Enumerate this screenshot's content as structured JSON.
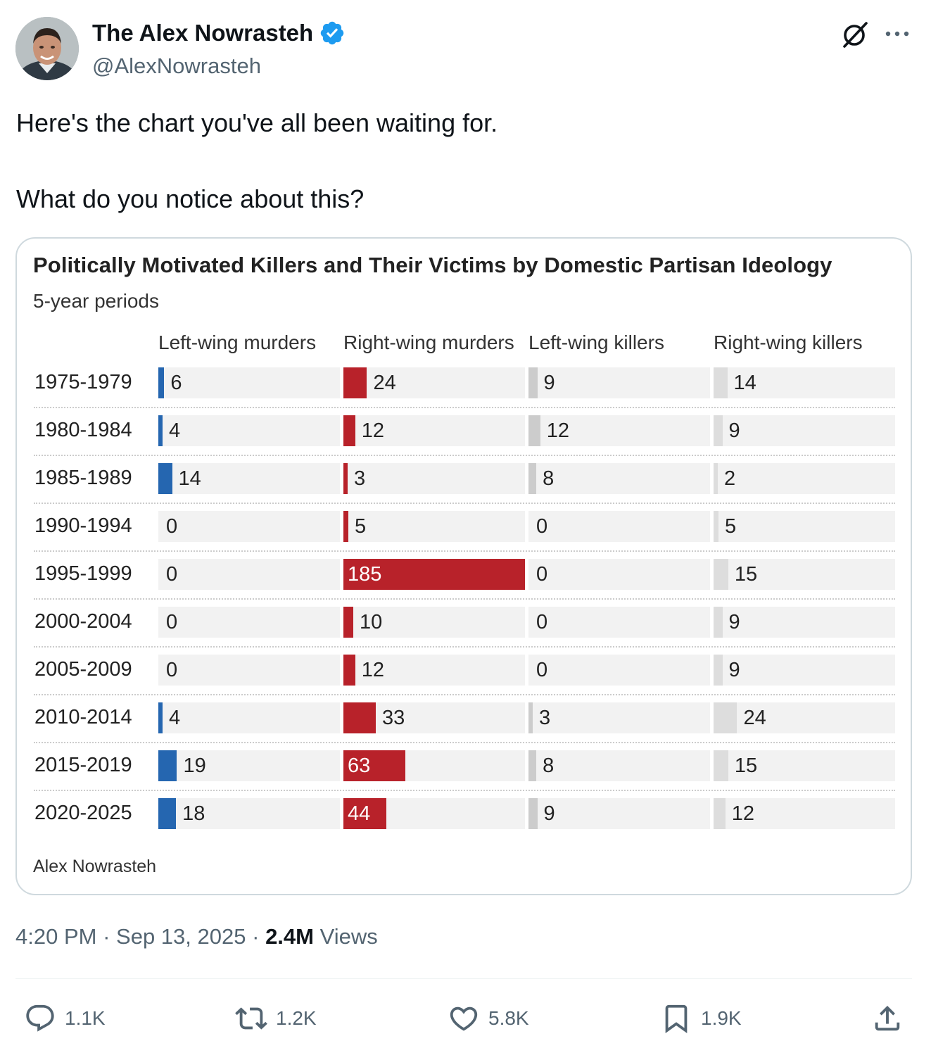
{
  "author": {
    "name": "The Alex Nowrasteh",
    "handle": "@AlexNowrasteh",
    "verified_color": "#1d9bf0"
  },
  "tweet": {
    "line1": "Here's the chart you've all been waiting for.",
    "line2": "What do you notice about this?"
  },
  "chart_data": {
    "type": "table",
    "title": "Politically Motivated Killers and Their Victims by Domestic Partisan Ideology",
    "subtitle": "5-year periods",
    "source": "Alex Nowrasteh",
    "columns": [
      "Left-wing murders",
      "Right-wing murders",
      "Left-wing killers",
      "Right-wing killers"
    ],
    "column_colors": [
      "#2566b0",
      "#b8222a",
      "#cccccc",
      "#dddddd"
    ],
    "rows": [
      {
        "period": "1975-1979",
        "values": [
          6,
          24,
          9,
          14
        ]
      },
      {
        "period": "1980-1984",
        "values": [
          4,
          12,
          12,
          9
        ]
      },
      {
        "period": "1985-1989",
        "values": [
          14,
          3,
          8,
          2
        ]
      },
      {
        "period": "1990-1994",
        "values": [
          0,
          5,
          0,
          5
        ]
      },
      {
        "period": "1995-1999",
        "values": [
          0,
          185,
          0,
          15
        ]
      },
      {
        "period": "2000-2004",
        "values": [
          0,
          10,
          0,
          9
        ]
      },
      {
        "period": "2005-2009",
        "values": [
          0,
          12,
          0,
          9
        ]
      },
      {
        "period": "2010-2014",
        "values": [
          4,
          33,
          3,
          24
        ]
      },
      {
        "period": "2015-2019",
        "values": [
          19,
          63,
          8,
          15
        ]
      },
      {
        "period": "2020-2025",
        "values": [
          18,
          44,
          9,
          12
        ]
      }
    ],
    "column_max": [
      185,
      185,
      185,
      185
    ]
  },
  "meta": {
    "time": "4:20 PM",
    "date": "Sep 13, 2025",
    "views_count": "2.4M",
    "views_label": "Views",
    "dot": "·"
  },
  "actions": {
    "replies": "1.1K",
    "reposts": "1.2K",
    "likes": "5.8K",
    "bookmarks": "1.9K"
  },
  "icons": [
    "verified-icon",
    "grok-icon",
    "more-icon",
    "reply-icon",
    "repost-icon",
    "like-icon",
    "bookmark-icon",
    "share-icon"
  ]
}
